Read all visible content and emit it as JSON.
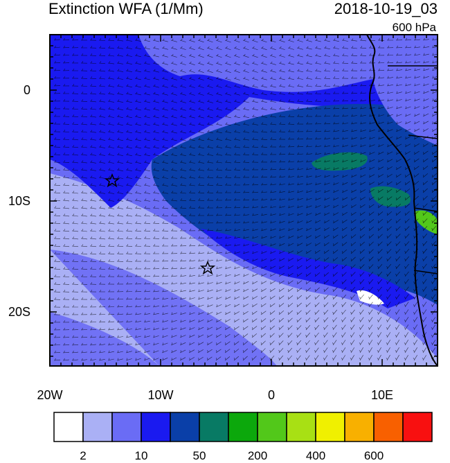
{
  "header": {
    "title": "Extinction WFA (1/Mm)",
    "timestamp": "2018-10-19_03",
    "level": "600 hPa"
  },
  "axes": {
    "lat_labels": [
      "0",
      "10S",
      "20S"
    ],
    "lon_labels": [
      "20W",
      "10W",
      "0",
      "10E"
    ]
  },
  "colorbar": {
    "colors": [
      "#ffffff",
      "#aab0f5",
      "#6a6cf5",
      "#1a1af0",
      "#0a3fa8",
      "#087a64",
      "#0ca80c",
      "#52c81a",
      "#a8e014",
      "#f0f000",
      "#f8b000",
      "#f86000",
      "#f81010"
    ],
    "labels": [
      "2",
      "10",
      "50",
      "200",
      "400",
      "600"
    ]
  },
  "map": {
    "markers": [
      "star",
      "star"
    ],
    "field_colors": {
      "light": "#aab0f5",
      "medium": "#6a6cf5",
      "blue": "#1a1af0",
      "dark": "#0a3fa8",
      "teal": "#087a64",
      "green": "#52c81a",
      "white": "#ffffff"
    }
  }
}
